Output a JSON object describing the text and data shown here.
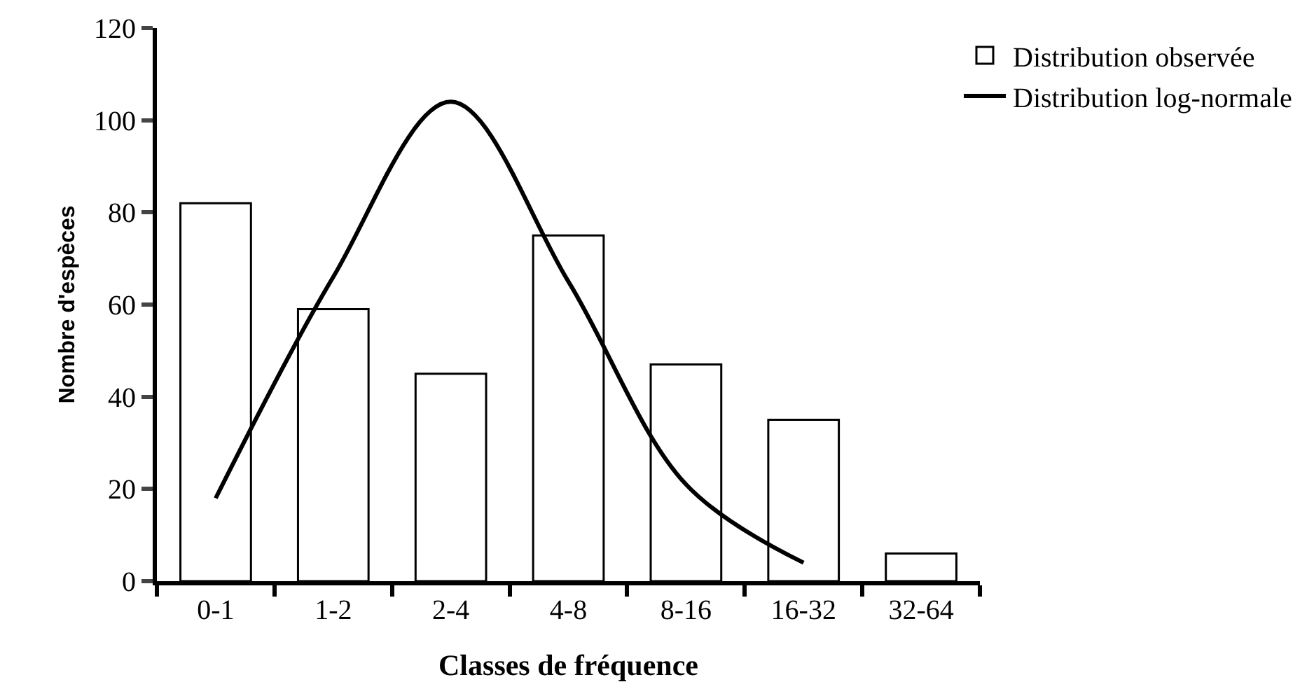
{
  "chart_data": {
    "type": "bar",
    "xlabel": "Classes de fréquence",
    "ylabel": "Nombre d'espèces",
    "categories": [
      "0-1",
      "1-2",
      "2-4",
      "4-8",
      "8-16",
      "16-32",
      "32-64"
    ],
    "series": [
      {
        "name": "Distribution observée",
        "color": "#ffffff",
        "values": [
          82,
          59,
          45,
          75,
          47,
          35,
          6
        ]
      },
      {
        "name": "Distribution log-normale",
        "type": "line",
        "color": "#000000",
        "values": [
          18,
          66,
          104,
          65,
          21,
          4,
          null
        ]
      }
    ],
    "ylim": [
      0,
      120
    ],
    "yticks": [
      0,
      20,
      40,
      60,
      80,
      100,
      120
    ],
    "grid": false,
    "legend": "top right",
    "marker": "none",
    "line_style": "solid"
  }
}
